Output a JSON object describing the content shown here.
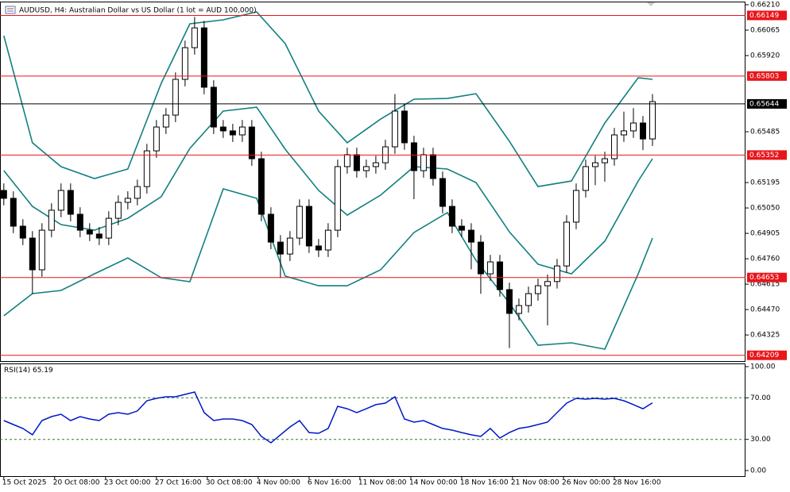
{
  "chart_data": [
    {
      "type": "candlestick",
      "title": "AUDUSD, H4:  Australian Dollar vs US Dollar (1 lot = AUD 100,000)",
      "xlim": [
        -0.4,
        77.75
      ],
      "xticks": [
        {
          "value": 0,
          "label": "15 Oct 2025"
        },
        {
          "value": 5.33,
          "label": "20 Oct 08:00"
        },
        {
          "value": 10.67,
          "label": "23 Oct 00:00"
        },
        {
          "value": 16,
          "label": "27 Oct 16:00"
        },
        {
          "value": 21.33,
          "label": "30 Oct 08:00"
        },
        {
          "value": 26.67,
          "label": "4 Nov 00:00"
        },
        {
          "value": 32,
          "label": "6 Nov 16:00"
        },
        {
          "value": 37.33,
          "label": "11 Nov 08:00"
        },
        {
          "value": 42.67,
          "label": "14 Nov 00:00"
        },
        {
          "value": 48,
          "label": "18 Nov 16:00"
        },
        {
          "value": 53.33,
          "label": "21 Nov 08:00"
        },
        {
          "value": 58.67,
          "label": "26 Nov 00:00"
        },
        {
          "value": 64,
          "label": "28 Nov 16:00"
        }
      ],
      "ylim": [
        0.64176,
        0.66228
      ],
      "yticks": [
        {
          "value": 0.6621,
          "label": "0.66210"
        },
        0.66065,
        {
          "value": 0.6592,
          "label": "0.65920"
        },
        0.65485,
        0.65195,
        {
          "value": 0.6505,
          "label": "0.65050"
        },
        0.64905,
        {
          "value": 0.6476,
          "label": "0.64760"
        },
        0.64615,
        {
          "value": 0.6447,
          "label": "0.64470"
        },
        0.64325
      ],
      "candle_color": "#000000",
      "candles": [
        [
          0.6515,
          0.6519,
          0.65065,
          0.65105
        ],
        [
          0.65105,
          0.65145,
          0.64906,
          0.64946
        ],
        [
          0.64946,
          0.64986,
          0.64838,
          0.64878
        ],
        [
          0.64878,
          0.64918,
          0.6456,
          0.64697
        ],
        [
          0.64697,
          0.64963,
          0.64657,
          0.64923
        ],
        [
          0.64923,
          0.65077,
          0.64883,
          0.65037
        ],
        [
          0.65037,
          0.6519,
          0.64997,
          0.6515
        ],
        [
          0.6515,
          0.6519,
          0.64974,
          0.65014
        ],
        [
          0.65014,
          0.65054,
          0.64883,
          0.64923
        ],
        [
          0.64923,
          0.64963,
          0.64861,
          0.64901
        ],
        [
          0.64901,
          0.64941,
          0.64838,
          0.64878
        ],
        [
          0.64878,
          0.65031,
          0.64838,
          0.64991
        ],
        [
          0.64991,
          0.65122,
          0.64951,
          0.65082
        ],
        [
          0.65082,
          0.65145,
          0.65042,
          0.65105
        ],
        [
          0.65105,
          0.65212,
          0.65065,
          0.65172
        ],
        [
          0.65172,
          0.65416,
          0.65132,
          0.65376
        ],
        [
          0.65376,
          0.65552,
          0.65336,
          0.65512
        ],
        [
          0.65512,
          0.6562,
          0.65472,
          0.6558
        ],
        [
          0.6558,
          0.65824,
          0.6554,
          0.65784
        ],
        [
          0.65784,
          0.66005,
          0.65744,
          0.65965
        ],
        [
          0.65965,
          0.6614,
          0.65925,
          0.66078
        ],
        [
          0.66078,
          0.66118,
          0.65699,
          0.65739
        ],
        [
          0.65739,
          0.65779,
          0.65472,
          0.65512
        ],
        [
          0.65512,
          0.65552,
          0.6545,
          0.6549
        ],
        [
          0.6549,
          0.6553,
          0.65427,
          0.65467
        ],
        [
          0.65467,
          0.65552,
          0.65427,
          0.65512
        ],
        [
          0.65512,
          0.65552,
          0.65291,
          0.65331
        ],
        [
          0.65331,
          0.65371,
          0.64974,
          0.65014
        ],
        [
          0.65014,
          0.65054,
          0.64815,
          0.64855
        ],
        [
          0.64855,
          0.64895,
          0.6465,
          0.64787
        ],
        [
          0.64787,
          0.64918,
          0.64747,
          0.64878
        ],
        [
          0.64878,
          0.65099,
          0.64838,
          0.65059
        ],
        [
          0.65059,
          0.65099,
          0.64793,
          0.64833
        ],
        [
          0.64833,
          0.64873,
          0.6477,
          0.6481
        ],
        [
          0.6481,
          0.64963,
          0.6477,
          0.64923
        ],
        [
          0.64923,
          0.65326,
          0.64883,
          0.65286
        ],
        [
          0.65286,
          0.65394,
          0.65246,
          0.65354
        ],
        [
          0.65354,
          0.65394,
          0.65223,
          0.65263
        ],
        [
          0.65263,
          0.65326,
          0.65223,
          0.65286
        ],
        [
          0.65286,
          0.65348,
          0.65246,
          0.65308
        ],
        [
          0.65308,
          0.65439,
          0.65268,
          0.65399
        ],
        [
          0.65399,
          0.657,
          0.65359,
          0.65603
        ],
        [
          0.65603,
          0.65643,
          0.65382,
          0.65422
        ],
        [
          0.65422,
          0.65462,
          0.651,
          0.65263
        ],
        [
          0.65263,
          0.65394,
          0.65223,
          0.65354
        ],
        [
          0.65354,
          0.65394,
          0.65178,
          0.65218
        ],
        [
          0.65218,
          0.65258,
          0.65019,
          0.65059
        ],
        [
          0.65059,
          0.65099,
          0.64906,
          0.64946
        ],
        [
          0.64946,
          0.64986,
          0.64883,
          0.64923
        ],
        [
          0.64923,
          0.64963,
          0.647,
          0.64855
        ],
        [
          0.64855,
          0.64895,
          0.6456,
          0.64674
        ],
        [
          0.64674,
          0.64782,
          0.64634,
          0.64742
        ],
        [
          0.64742,
          0.64782,
          0.64544,
          0.64584
        ],
        [
          0.64584,
          0.64624,
          0.6425,
          0.64448
        ],
        [
          0.64448,
          0.64533,
          0.64408,
          0.64493
        ],
        [
          0.64493,
          0.64601,
          0.64453,
          0.64561
        ],
        [
          0.64561,
          0.64646,
          0.64521,
          0.64606
        ],
        [
          0.64606,
          0.6467,
          0.6438,
          0.6463
        ],
        [
          0.6463,
          0.64759,
          0.6459,
          0.64719
        ],
        [
          0.64719,
          0.65009,
          0.64679,
          0.64969
        ],
        [
          0.64969,
          0.6519,
          0.64929,
          0.6515
        ],
        [
          0.6515,
          0.65326,
          0.6511,
          0.65286
        ],
        [
          0.65286,
          0.65348,
          0.6518,
          0.65308
        ],
        [
          0.65308,
          0.65371,
          0.652,
          0.65331
        ],
        [
          0.65331,
          0.65507,
          0.65291,
          0.65467
        ],
        [
          0.65467,
          0.656,
          0.65427,
          0.6549
        ],
        [
          0.6549,
          0.6562,
          0.6545,
          0.65535
        ],
        [
          0.65535,
          0.65575,
          0.6538,
          0.65444
        ],
        [
          0.65444,
          0.657,
          0.65404,
          0.65657
        ]
      ],
      "bands": {
        "color": "#11807f",
        "x": [
          0,
          3,
          6,
          9.5,
          13,
          16.5,
          19.5,
          23,
          26.5,
          29.5,
          33,
          36,
          39.5,
          43,
          46.5,
          49.5,
          53,
          56,
          59.5,
          63,
          66.5,
          68
        ],
        "upper": [
          0.66033,
          0.65422,
          0.65286,
          0.65218,
          0.65272,
          0.65761,
          0.66101,
          0.66124,
          0.66169,
          0.65988,
          0.65603,
          0.65422,
          0.65557,
          0.65671,
          0.65675,
          0.65702,
          0.65431,
          0.65172,
          0.65204,
          0.65535,
          0.65793,
          0.65784
        ],
        "middle": [
          0.65263,
          0.65059,
          0.64955,
          0.64923,
          0.64991,
          0.65114,
          0.6539,
          0.65603,
          0.65625,
          0.65385,
          0.6515,
          0.65009,
          0.65123,
          0.65286,
          0.65272,
          0.65195,
          0.64914,
          0.64729,
          0.64674,
          0.6486,
          0.65204,
          0.65331
        ],
        "lower": [
          0.64434,
          0.64561,
          0.64579,
          0.64674,
          0.64765,
          0.64652,
          0.64629,
          0.65159,
          0.65105,
          0.64661,
          0.64606,
          0.64606,
          0.64697,
          0.6491,
          0.65023,
          0.64751,
          0.64507,
          0.64266,
          0.6428,
          0.64244,
          0.64674,
          0.64878
        ]
      },
      "levels": [
        {
          "value": 0.66149,
          "color": "#e8161b"
        },
        {
          "value": 0.65803,
          "color": "#e8161b"
        },
        {
          "value": 0.65644,
          "color": "#000000"
        },
        {
          "value": 0.65352,
          "color": "#e8161b"
        },
        {
          "value": 0.64653,
          "color": "#e8161b"
        },
        {
          "value": 0.64209,
          "color": "#e8161b"
        }
      ]
    },
    {
      "type": "line",
      "title": "RSI(14)",
      "color": "#0018c8",
      "ylim": [
        0,
        100
      ],
      "yticks": [
        {
          "value": 100,
          "label": "100.00"
        },
        {
          "value": 70,
          "label": "70.00"
        },
        {
          "value": 30,
          "label": "30.00"
        },
        {
          "value": 0,
          "label": "0.00"
        }
      ],
      "levels": [
        70,
        30
      ],
      "values": [
        48.1,
        44.3,
        40.5,
        34.4,
        48.1,
        51.9,
        54.2,
        48.1,
        51.9,
        49.6,
        48.1,
        54.2,
        55.7,
        54.2,
        57.3,
        67.2,
        69.5,
        71.0,
        71.0,
        73.3,
        75.6,
        55.7,
        48.1,
        49.6,
        49.6,
        48.1,
        44.3,
        32.8,
        26.7,
        34.4,
        42.0,
        48.1,
        36.6,
        35.9,
        40.5,
        61.8,
        59.5,
        55.7,
        59.5,
        63.4,
        64.9,
        71.0,
        49.6,
        46.6,
        48.1,
        44.3,
        40.5,
        38.9,
        36.6,
        34.4,
        32.8,
        40.5,
        31.3,
        36.6,
        40.5,
        42.0,
        44.3,
        46.6,
        55.7,
        64.9,
        69.5,
        68.7,
        69.5,
        68.7,
        69.5,
        67.2,
        63.4,
        59.5,
        65.19
      ]
    }
  ]
}
